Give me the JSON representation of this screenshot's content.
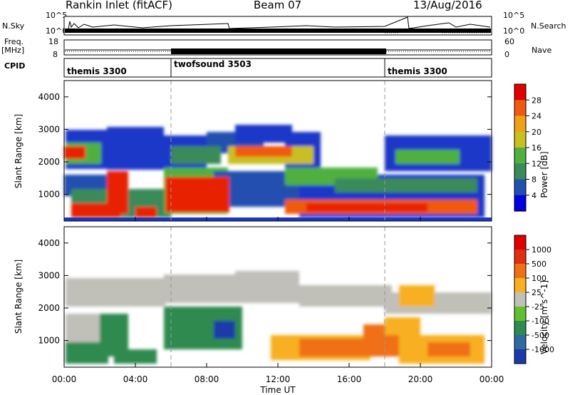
{
  "header": {
    "station": "Rankin Inlet (fitACF)",
    "beam": "Beam 07",
    "date": "13/Aug/2016"
  },
  "strip_labels": {
    "nsky": "N.Sky",
    "nsearch": "N.Search",
    "freq_line1": "Freq.",
    "freq_line2": "[MHz]",
    "nave": "Nave",
    "cpid": "CPID",
    "nsky_ticks": [
      "10^5",
      "10^0"
    ],
    "nsearch_ticks": [
      "10^5",
      "10^0"
    ],
    "freq_ticks": [
      "18",
      "8"
    ],
    "nave_ticks": [
      "60",
      "0"
    ]
  },
  "chart_data": [
    {
      "type": "heatmap",
      "panel": "power",
      "ylabel": "Slant Range [km]",
      "ylim": [
        180,
        4500
      ],
      "yticks": [
        "4000",
        "3000",
        "2000",
        "1000"
      ],
      "colorbar_label": "Power [dB]",
      "colorbar_ticks": [
        "28",
        "24",
        "20",
        "16",
        "12",
        "8",
        "4"
      ],
      "colors": [
        "#0000e0",
        "#2050b0",
        "#3a8a5a",
        "#50b040",
        "#c8c020",
        "#f0a018",
        "#f05a10",
        "#e00000"
      ]
    },
    {
      "type": "heatmap",
      "panel": "velocity",
      "ylabel": "Slant Range [km]",
      "ylim": [
        180,
        4500
      ],
      "yticks": [
        "4000",
        "3000",
        "2000",
        "1000"
      ],
      "colorbar_label": "Velocity [m s^-1]",
      "colorbar_ticks": [
        "1000",
        "500",
        "100",
        "25",
        "-25",
        "-100",
        "-500",
        "-1000"
      ],
      "colors": [
        "#1a3aa8",
        "#2c6aa0",
        "#2e8a50",
        "#60c030",
        "#c0c0b8",
        "#f8b020",
        "#f07018",
        "#e03010",
        "#e00000"
      ]
    }
  ],
  "xaxis": {
    "label": "Time UT",
    "ticks": [
      "00:00",
      "04:00",
      "08:00",
      "12:00",
      "16:00",
      "20:00",
      "00:00"
    ]
  },
  "cpid_segments": [
    {
      "label": "themis 3300",
      "start": "00:00",
      "end": "06:00"
    },
    {
      "label": "twofsound 3503",
      "start": "06:00",
      "end": "18:00"
    },
    {
      "label": "themis 3300",
      "start": "18:00",
      "end": "00:00"
    }
  ]
}
